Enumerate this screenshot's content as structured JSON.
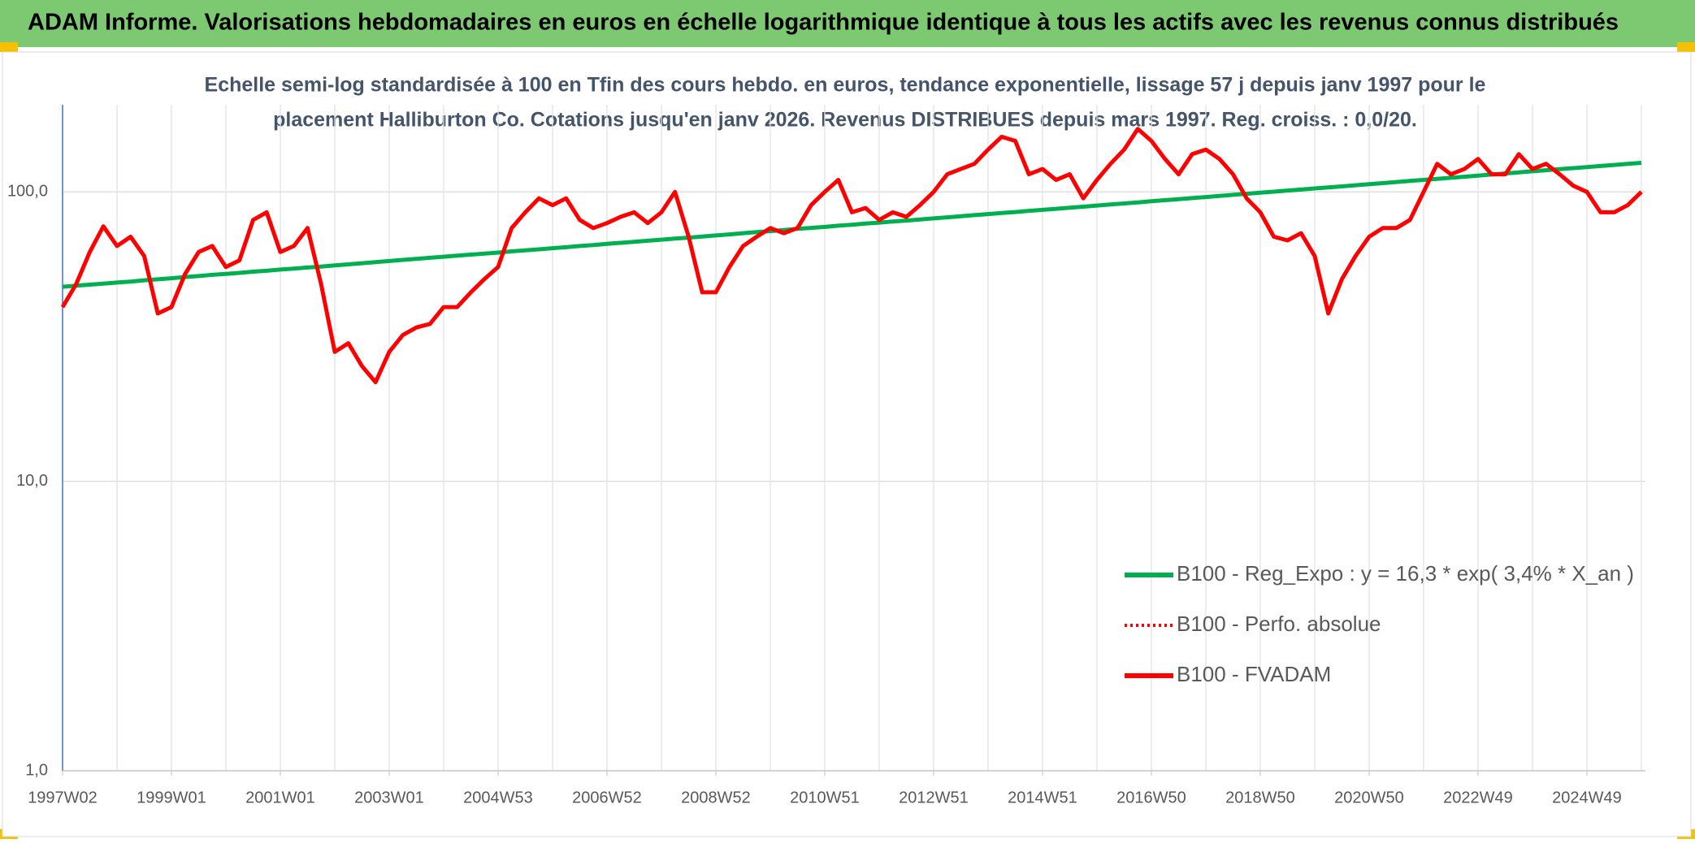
{
  "header": {
    "title": "ADAM Informe. Valorisations hebdomadaires en euros en échelle logarithmique identique à tous les actifs avec les revenus connus distribués"
  },
  "chart_data": {
    "type": "line",
    "subtitle": [
      "Echelle semi-log standardisée à 100 en Tfin des cours hebdo. en euros, tendance exponentielle, lissage 57 j depuis janv 1997 pour le",
      "placement Halliburton Co. Cotations jusqu'en janv 2026. Revenus DISTRIBUES depuis mars 1997. Reg. croiss. : 0,0/20."
    ],
    "log_scale": true,
    "grid": true,
    "legend": "right",
    "ylim": [
      1,
      200
    ],
    "yticks": [
      {
        "value": 1,
        "label": "1,0"
      },
      {
        "value": 10,
        "label": "10,0"
      },
      {
        "value": 100,
        "label": "100,0"
      }
    ],
    "x": [
      "1997W02",
      null,
      null,
      null,
      null,
      null,
      null,
      null,
      "1999W01",
      null,
      null,
      null,
      null,
      null,
      null,
      null,
      "2001W01",
      null,
      null,
      null,
      null,
      null,
      null,
      null,
      "2003W01",
      null,
      null,
      null,
      null,
      null,
      null,
      null,
      "2004W53",
      null,
      null,
      null,
      null,
      null,
      null,
      null,
      "2006W52",
      null,
      null,
      null,
      null,
      null,
      null,
      null,
      "2008W52",
      null,
      null,
      null,
      null,
      null,
      null,
      null,
      "2010W51",
      null,
      null,
      null,
      null,
      null,
      null,
      null,
      "2012W51",
      null,
      null,
      null,
      null,
      null,
      null,
      null,
      "2014W51",
      null,
      null,
      null,
      null,
      null,
      null,
      null,
      "2016W50",
      null,
      null,
      null,
      null,
      null,
      null,
      null,
      "2018W50",
      null,
      null,
      null,
      null,
      null,
      null,
      null,
      "2020W50",
      null,
      null,
      null,
      null,
      null,
      null,
      null,
      "2022W49",
      null,
      null,
      null,
      null,
      null,
      null,
      null,
      "2024W49",
      null,
      null,
      null,
      null
    ],
    "series": [
      {
        "name": "B100 - Reg_Expo : y = 16,3 * exp( 3,4% *  X_an )",
        "color": "#00b050",
        "style": "solid",
        "values": [
          47.0,
          47.4,
          47.8,
          48.2,
          48.6,
          49.0,
          49.5,
          49.9,
          50.3,
          50.8,
          51.2,
          51.7,
          52.1,
          52.5,
          53.0,
          53.4,
          53.9,
          54.3,
          54.8,
          55.2,
          55.7,
          56.2,
          56.7,
          57.2,
          57.7,
          58.2,
          58.7,
          59.2,
          59.7,
          60.2,
          60.7,
          61.2,
          61.7,
          62.3,
          62.8,
          63.3,
          63.9,
          64.4,
          65.0,
          65.5,
          66.1,
          66.7,
          67.2,
          67.8,
          68.4,
          69.0,
          69.5,
          70.1,
          70.7,
          71.3,
          72.0,
          72.6,
          73.2,
          73.8,
          74.5,
          75.1,
          75.7,
          76.4,
          77.0,
          77.7,
          78.3,
          79.0,
          79.6,
          80.3,
          81.0,
          81.7,
          82.4,
          83.1,
          83.8,
          84.5,
          85.2,
          86.0,
          86.7,
          87.4,
          88.2,
          88.9,
          89.7,
          90.5,
          91.2,
          92.0,
          92.8,
          93.6,
          94.4,
          95.2,
          96.0,
          96.8,
          97.7,
          98.5,
          99.4,
          100.2,
          101.1,
          101.9,
          102.8,
          103.7,
          104.5,
          105.4,
          106.3,
          107.2,
          108.2,
          109.1,
          110.0,
          110.9,
          111.9,
          112.8,
          113.8,
          114.8,
          115.8,
          116.8,
          117.8,
          118.8,
          119.8,
          120.8,
          121.8,
          122.9,
          123.9,
          125.0,
          126.0
        ]
      },
      {
        "name": "B100 - Perfo. absolue",
        "color": "#ff0000",
        "style": "dotted",
        "values": [
          40,
          48,
          62,
          76,
          65,
          70,
          60,
          38,
          40,
          52,
          62,
          65,
          55,
          58,
          80,
          85,
          62,
          65,
          75,
          48,
          28,
          30,
          25,
          22,
          28,
          32,
          34,
          35,
          40,
          40,
          45,
          50,
          55,
          75,
          85,
          95,
          90,
          95,
          80,
          75,
          78,
          82,
          85,
          78,
          85,
          100,
          70,
          45,
          45,
          55,
          65,
          70,
          75,
          72,
          75,
          90,
          100,
          110,
          85,
          88,
          80,
          85,
          82,
          90,
          100,
          115,
          120,
          125,
          140,
          155,
          150,
          115,
          120,
          110,
          115,
          95,
          110,
          125,
          140,
          165,
          150,
          130,
          115,
          135,
          140,
          130,
          115,
          95,
          85,
          70,
          68,
          72,
          60,
          38,
          50,
          60,
          70,
          75,
          75,
          80,
          100,
          125,
          115,
          120,
          130,
          115,
          115,
          135,
          120,
          125,
          115,
          105,
          100,
          85,
          85,
          90,
          100
        ]
      },
      {
        "name": "B100 - FVADAM",
        "color": "#ff0000",
        "style": "solid",
        "values": [
          40,
          48,
          62,
          76,
          65,
          70,
          60,
          38,
          40,
          52,
          62,
          65,
          55,
          58,
          80,
          85,
          62,
          65,
          75,
          48,
          28,
          30,
          25,
          22,
          28,
          32,
          34,
          35,
          40,
          40,
          45,
          50,
          55,
          75,
          85,
          95,
          90,
          95,
          80,
          75,
          78,
          82,
          85,
          78,
          85,
          100,
          70,
          45,
          45,
          55,
          65,
          70,
          75,
          72,
          75,
          90,
          100,
          110,
          85,
          88,
          80,
          85,
          82,
          90,
          100,
          115,
          120,
          125,
          140,
          155,
          150,
          115,
          120,
          110,
          115,
          95,
          110,
          125,
          140,
          165,
          150,
          130,
          115,
          135,
          140,
          130,
          115,
          95,
          85,
          70,
          68,
          72,
          60,
          38,
          50,
          60,
          70,
          75,
          75,
          80,
          100,
          125,
          115,
          120,
          130,
          115,
          115,
          135,
          120,
          125,
          115,
          105,
          100,
          85,
          85,
          90,
          100
        ]
      }
    ]
  }
}
